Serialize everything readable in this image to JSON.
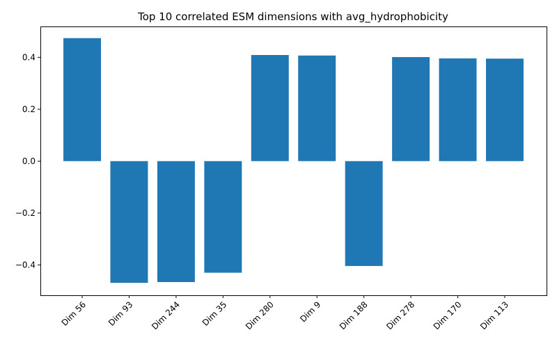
{
  "chart_data": {
    "type": "bar",
    "title": "Top 10 correlated ESM dimensions with avg_hydrophobicity",
    "xlabel": "",
    "ylabel": "",
    "categories": [
      "Dim 56",
      "Dim 93",
      "Dim 244",
      "Dim 35",
      "Dim 280",
      "Dim 9",
      "Dim 188",
      "Dim 278",
      "Dim 170",
      "Dim 113"
    ],
    "values": [
      0.474,
      -0.469,
      -0.466,
      -0.43,
      0.409,
      0.407,
      -0.404,
      0.401,
      0.396,
      0.395
    ],
    "ylim": [
      -0.517,
      0.519
    ],
    "yticks": [
      -0.4,
      -0.2,
      0.0,
      0.2,
      0.4
    ],
    "ytick_labels": [
      "−0.4",
      "−0.2",
      "0.0",
      "0.2",
      "0.4"
    ],
    "bar_color": "#1f77b4",
    "grid": false,
    "legend": "none"
  }
}
